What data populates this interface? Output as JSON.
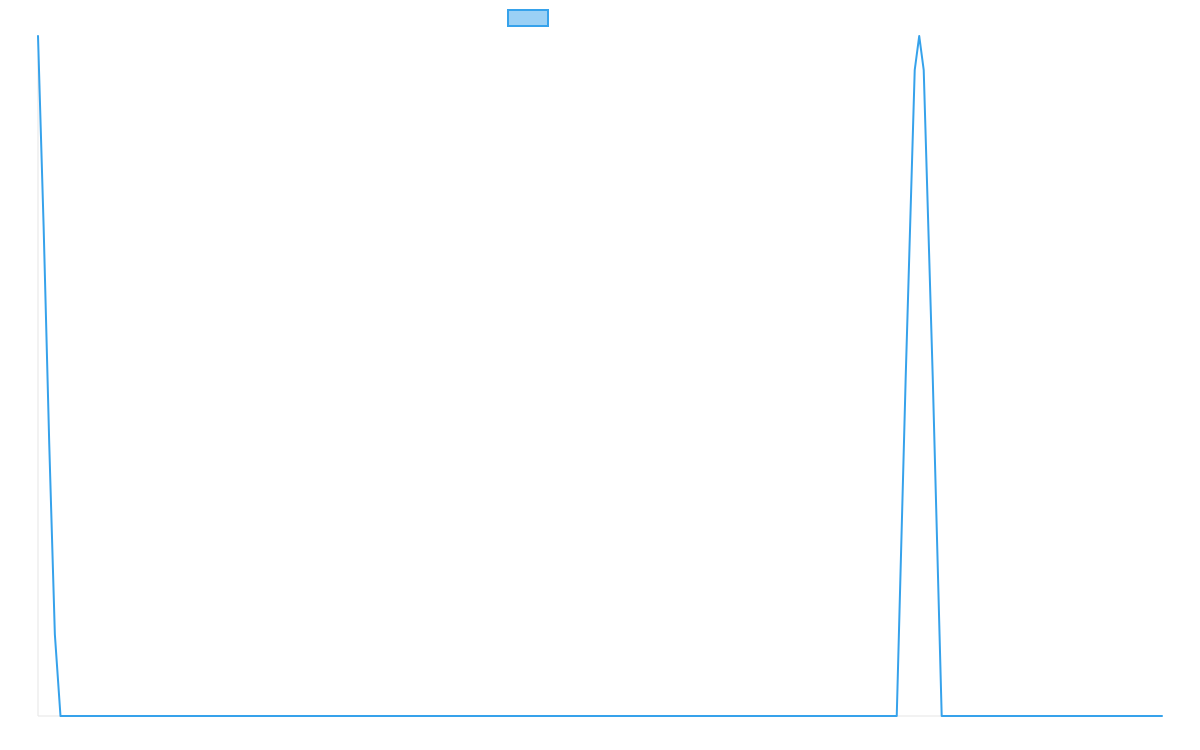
{
  "chart_data": {
    "type": "line",
    "title": "",
    "xlabel": "",
    "ylabel": "",
    "x_range": [
      0,
      50
    ],
    "ylim": [
      0,
      1
    ],
    "grid": false,
    "legend": "top-center",
    "series": [
      {
        "color": "#36a2eb",
        "fill": "#9ad0f5",
        "points": [
          [
            0,
            1
          ],
          [
            0.25,
            0.72
          ],
          [
            0.5,
            0.4
          ],
          [
            0.75,
            0.12
          ],
          [
            1,
            0
          ],
          [
            38.2,
            0
          ],
          [
            38.6,
            0.5
          ],
          [
            39,
            0.95
          ],
          [
            39.2,
            1
          ],
          [
            39.4,
            0.95
          ],
          [
            39.8,
            0.5
          ],
          [
            40.2,
            0
          ],
          [
            50,
            0
          ]
        ]
      }
    ]
  }
}
